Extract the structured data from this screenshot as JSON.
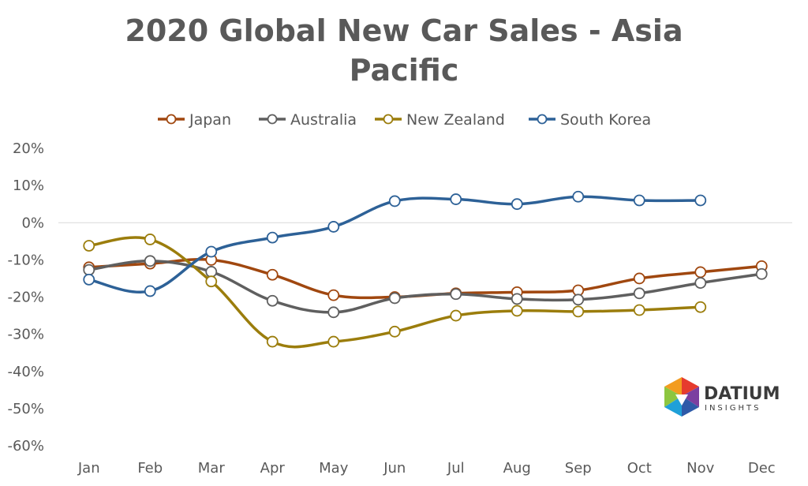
{
  "title_line1": "2020 Global New Car Sales - Asia",
  "title_line2": "Pacific",
  "logo": {
    "name": "DATIUM",
    "sub": "INSIGHTS"
  },
  "chart_data": {
    "type": "line",
    "title": "2020 Global New Car Sales - Asia Pacific",
    "xlabel": "",
    "ylabel": "",
    "categories": [
      "Jan",
      "Feb",
      "Mar",
      "Apr",
      "May",
      "Jun",
      "Jul",
      "Aug",
      "Sep",
      "Oct",
      "Nov",
      "Dec"
    ],
    "ylim": [
      -60,
      20
    ],
    "yticks": [
      20,
      10,
      0,
      -10,
      -20,
      -30,
      -40,
      -50,
      -60
    ],
    "ytick_labels": [
      "20%",
      "10%",
      "0%",
      "-10%",
      "-20%",
      "-30%",
      "-40%",
      "-50%",
      "-60%"
    ],
    "grid": "zero-line only",
    "legend_position": "top",
    "series": [
      {
        "name": "Japan",
        "color": "#a0470f",
        "values": [
          -12,
          -11,
          -10,
          -14,
          -19.5,
          -20,
          -19,
          -18.7,
          -18.2,
          -15,
          -13.3,
          -11.7
        ]
      },
      {
        "name": "Australia",
        "color": "#5f5f5f",
        "values": [
          -12.7,
          -10.3,
          -13.2,
          -21,
          -24.1,
          -20.3,
          -19.2,
          -20.5,
          -20.7,
          -19,
          -16.2,
          -13.8
        ]
      },
      {
        "name": "New Zealand",
        "color": "#9b7d0c",
        "values": [
          -6.2,
          -4.5,
          -15.8,
          -32,
          -32,
          -29.3,
          -25,
          -23.7,
          -23.9,
          -23.5,
          -22.7,
          null
        ]
      },
      {
        "name": "South Korea",
        "color": "#2d6197",
        "values": [
          -15.3,
          -18.4,
          -7.8,
          -4,
          -1.1,
          5.8,
          6.3,
          5,
          7,
          6,
          6,
          null
        ]
      }
    ]
  }
}
